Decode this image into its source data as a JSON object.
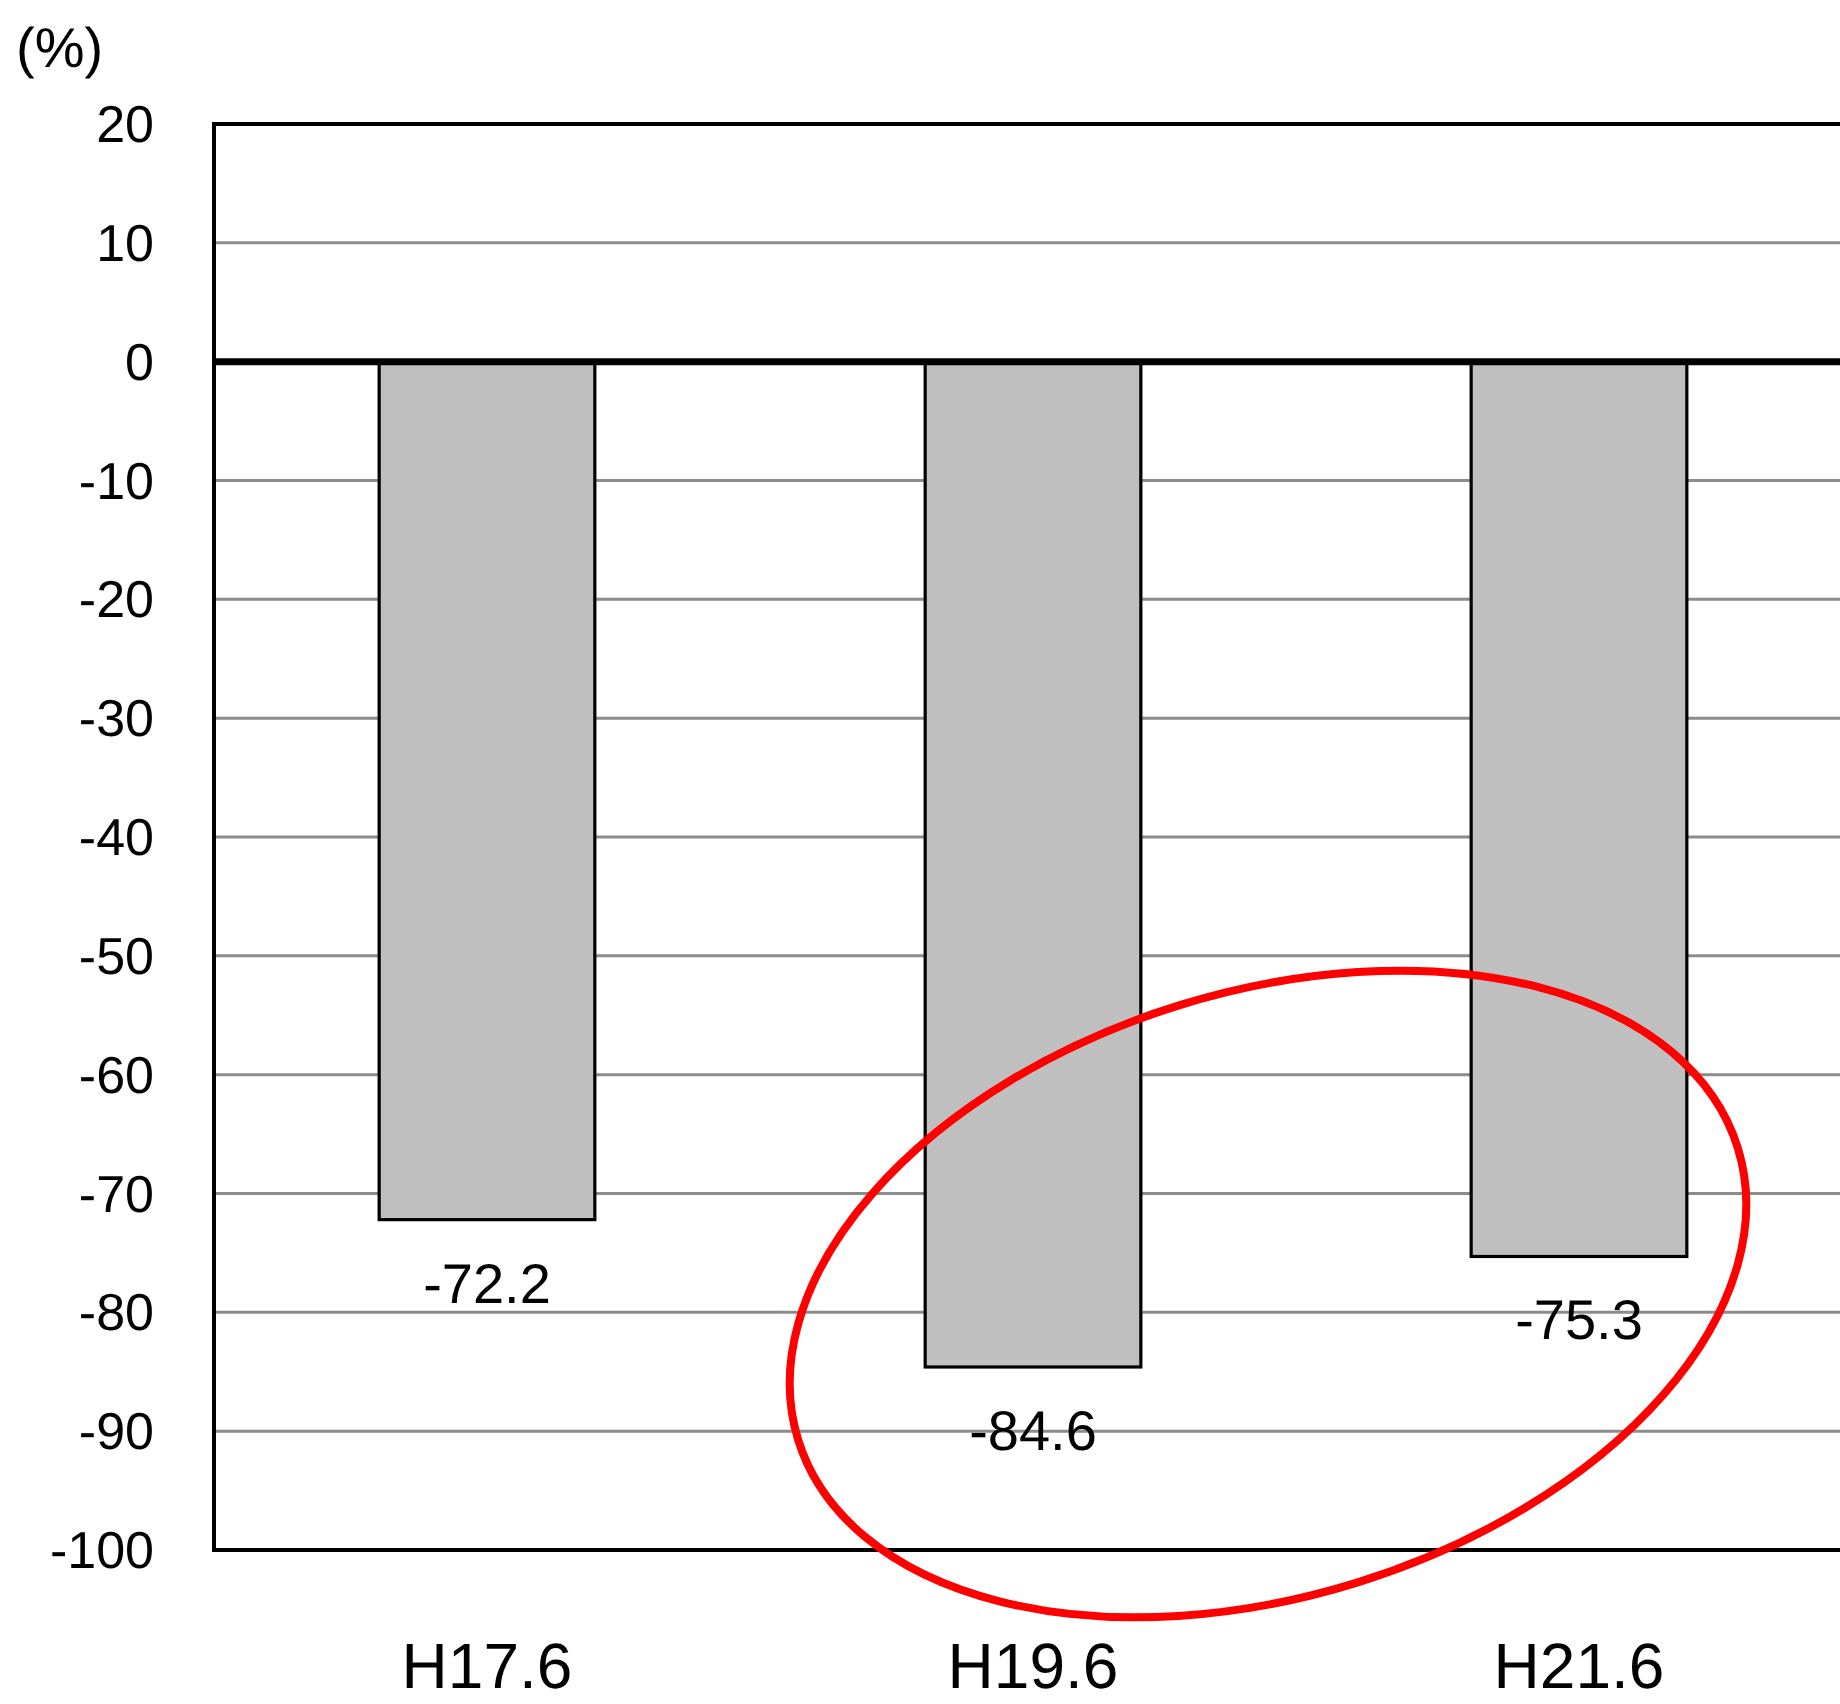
{
  "chart_data": {
    "type": "bar",
    "ylabel": "(%)",
    "categories": [
      "H17.6",
      "H19.6",
      "H21.6"
    ],
    "values": [
      -72.2,
      -84.6,
      -75.3
    ],
    "color": "#bfbfbf",
    "ylim": [
      -100,
      20
    ],
    "yticks": [
      -100,
      -90,
      -80,
      -70,
      -60,
      -50,
      -40,
      -30,
      -20,
      -10,
      0,
      10,
      20
    ],
    "grid": "y",
    "data_labels": true
  }
}
